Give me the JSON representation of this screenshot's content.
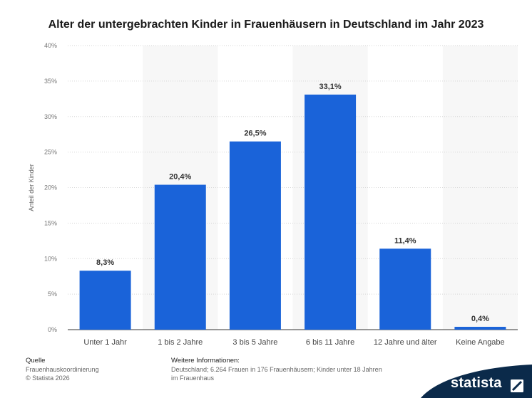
{
  "chart_data": {
    "type": "bar",
    "title": "Alter der untergebrachten Kinder in Frauenhäusern in Deutschland im Jahr 2023",
    "ylabel": "Anteil der Kinder",
    "xlabel": "",
    "categories": [
      "Unter 1 Jahr",
      "1 bis 2 Jahre",
      "3 bis 5 Jahre",
      "6 bis 11 Jahre",
      "12 Jahre und älter",
      "Keine Angabe"
    ],
    "values": [
      8.3,
      20.4,
      26.5,
      33.1,
      11.4,
      0.4
    ],
    "value_labels": [
      "8,3%",
      "20,4%",
      "26,5%",
      "33,1%",
      "11,4%",
      "0,4%"
    ],
    "ylim": [
      0,
      40
    ],
    "y_ticks": [
      0,
      5,
      10,
      15,
      20,
      25,
      30,
      35,
      40
    ],
    "y_tick_labels": [
      "0%",
      "5%",
      "10%",
      "15%",
      "20%",
      "25%",
      "30%",
      "35%",
      "40%"
    ],
    "grid": true,
    "bar_color": "#1a63d9"
  },
  "footer": {
    "source_heading": "Quelle",
    "source_line1": "Frauenhauskoordinierung",
    "source_line2": "© Statista 2026",
    "info_heading": "Weitere Informationen:",
    "info_line1": "Deutschland; 6.264 Frauen in 176 Frauenhäusern; Kinder unter 18 Jahren",
    "info_line2": "im Frauenhaus"
  },
  "brand": {
    "logo_text": "statista",
    "logo_color": "#0b2a4a"
  }
}
